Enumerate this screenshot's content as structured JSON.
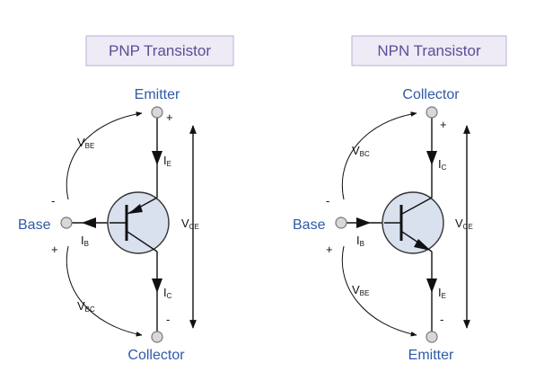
{
  "pnp": {
    "title": "PNP Transistor",
    "top_terminal": "Emitter",
    "bottom_terminal": "Collector",
    "base_terminal": "Base",
    "top_current": {
      "letter": "I",
      "sub": "E"
    },
    "bottom_current": {
      "letter": "I",
      "sub": "C"
    },
    "base_current": {
      "letter": "I",
      "sub": "B"
    },
    "upper_voltage": {
      "letter": "V",
      "sub": "BE"
    },
    "lower_voltage": {
      "letter": "V",
      "sub": "BC"
    },
    "vce": {
      "letter": "V",
      "sub": "CE"
    },
    "sign_top": "+",
    "sign_bottom": "-",
    "sign_base_upper": "-",
    "sign_base_lower": "+"
  },
  "npn": {
    "title": "NPN Transistor",
    "top_terminal": "Collector",
    "bottom_terminal": "Emitter",
    "base_terminal": "Base",
    "top_current": {
      "letter": "I",
      "sub": "C"
    },
    "bottom_current": {
      "letter": "I",
      "sub": "E"
    },
    "base_current": {
      "letter": "I",
      "sub": "B"
    },
    "upper_voltage": {
      "letter": "V",
      "sub": "BC"
    },
    "lower_voltage": {
      "letter": "V",
      "sub": "BE"
    },
    "vce": {
      "letter": "V",
      "sub": "CE"
    },
    "sign_top": "+",
    "sign_bottom": "-",
    "sign_base_upper": "-",
    "sign_base_lower": "+"
  }
}
